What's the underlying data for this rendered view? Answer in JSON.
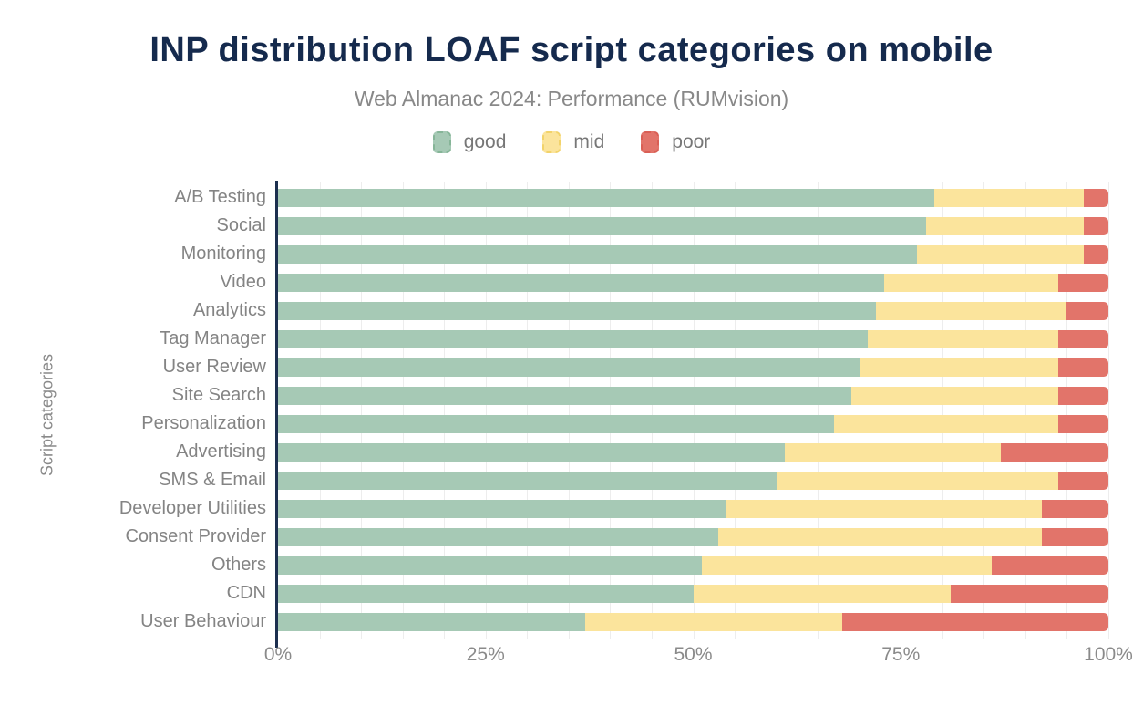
{
  "title": "INP distribution LOAF script categories on mobile",
  "subtitle": "Web Almanac 2024: Performance (RUMvision)",
  "colors": {
    "title_navy": "#152a4d",
    "axis_line_navy": "#1c2f4f",
    "muted_text": "#848484",
    "gridline": "#ededed"
  },
  "chart_data": {
    "type": "bar",
    "stacked": true,
    "orientation": "horizontal",
    "title": "INP distribution LOAF script categories on mobile",
    "subtitle": "Web Almanac 2024: Performance (RUMvision)",
    "xlabel": "",
    "ylabel": "Script categories",
    "xlim": [
      0,
      100
    ],
    "x_tick_labels": [
      "0%",
      "25%",
      "50%",
      "75%",
      "100%"
    ],
    "x_tick_positions": [
      0,
      25,
      50,
      75,
      100
    ],
    "grid": "vertical, every 5%",
    "legend_position": "top-center",
    "categories": [
      "A/B Testing",
      "Social",
      "Monitoring",
      "Video",
      "Analytics",
      "Tag Manager",
      "User Review",
      "Site Search",
      "Personalization",
      "Advertising",
      "SMS & Email",
      "Developer Utilities",
      "Consent Provider",
      "Others",
      "CDN",
      "User Behaviour"
    ],
    "series": [
      {
        "name": "good",
        "color": "#a6c9b5",
        "swatch_border": "#86b598",
        "values": [
          79,
          78,
          77,
          73,
          72,
          71,
          70,
          69,
          67,
          61,
          60,
          54,
          53,
          51,
          50,
          37
        ]
      },
      {
        "name": "mid",
        "color": "#fbe49c",
        "swatch_border": "#f2d36b",
        "values": [
          18,
          19,
          20,
          21,
          23,
          23,
          24,
          25,
          27,
          26,
          34,
          38,
          39,
          35,
          31,
          31
        ]
      },
      {
        "name": "poor",
        "color": "#e2746a",
        "swatch_border": "#d95f55",
        "values": [
          3,
          3,
          3,
          6,
          5,
          6,
          6,
          6,
          6,
          13,
          6,
          8,
          8,
          14,
          19,
          32
        ]
      }
    ]
  }
}
